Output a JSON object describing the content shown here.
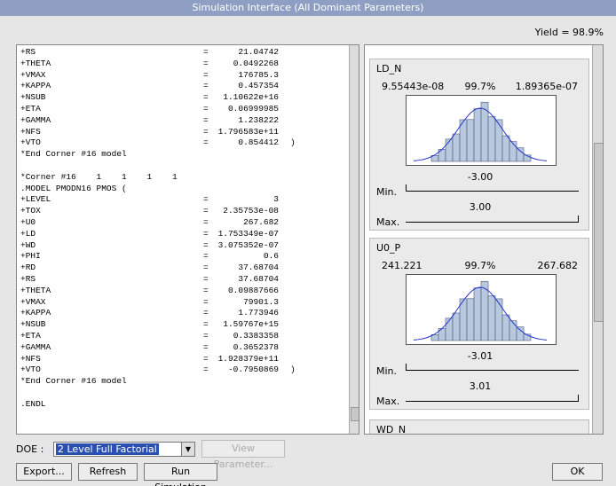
{
  "window": {
    "title": "Simulation Interface (All Dominant Parameters)",
    "yield": "Yield = 98.9%"
  },
  "model_text": [
    [
      "+RS",
      "=",
      "21.04742"
    ],
    [
      "+THETA",
      "=",
      "0.0492268"
    ],
    [
      "+VMAX",
      "=",
      "176785.3"
    ],
    [
      "+KAPPA",
      "=",
      "0.457354"
    ],
    [
      "+NSUB",
      "=",
      "1.10622e+16"
    ],
    [
      "+ETA",
      "=",
      "0.06999985"
    ],
    [
      "+GAMMA",
      "=",
      "1.238222"
    ],
    [
      "+NFS",
      "=",
      "1.796583e+11"
    ],
    [
      "+VTO",
      "=",
      "0.854412",
      ")"
    ],
    [
      "*End Corner #16 model"
    ],
    null,
    [
      "*Corner #16    1    1    1    1"
    ],
    [
      ".MODEL PMODN16 PMOS ("
    ],
    [
      "+LEVEL",
      "=",
      "3"
    ],
    [
      "+TOX",
      "=",
      "2.35753e-08"
    ],
    [
      "+U0",
      "=",
      "267.682"
    ],
    [
      "+LD",
      "=",
      "1.753349e-07"
    ],
    [
      "+WD",
      "=",
      "3.075352e-07"
    ],
    [
      "+PHI",
      "=",
      "0.6"
    ],
    [
      "+RD",
      "=",
      "37.68704"
    ],
    [
      "+RS",
      "=",
      "37.68704"
    ],
    [
      "+THETA",
      "=",
      "0.09887666"
    ],
    [
      "+VMAX",
      "=",
      "79901.3"
    ],
    [
      "+KAPPA",
      "=",
      "1.773946"
    ],
    [
      "+NSUB",
      "=",
      "1.59767e+15"
    ],
    [
      "+ETA",
      "=",
      "0.3383358"
    ],
    [
      "+GAMMA",
      "=",
      "0.3652378"
    ],
    [
      "+NFS",
      "=",
      "1.928379e+11"
    ],
    [
      "+VTO",
      "=",
      "-0.7950869",
      ")"
    ],
    [
      "*End Corner #16 model"
    ],
    null,
    [
      ".ENDL"
    ]
  ],
  "parameters": [
    {
      "name": "LD_N",
      "low": "9.55443e-08",
      "percent": "99.7%",
      "high": "1.89365e-07",
      "min_value": "-3.00",
      "min_label": "Min.",
      "max_value": "3.00",
      "max_label": "Max."
    },
    {
      "name": "U0_P",
      "low": "241.221",
      "percent": "99.7%",
      "high": "267.682",
      "min_value": "-3.01",
      "min_label": "Min.",
      "max_value": "3.01",
      "max_label": "Max."
    },
    {
      "name": "WD_N"
    }
  ],
  "controls": {
    "doe_label": "DOE :",
    "doe_value": "2 Level Full Factorial",
    "view_parameter": "View Parameter...",
    "export": "Export...",
    "refresh": "Refresh",
    "run_simulation": "Run Simulation",
    "ok": "OK"
  }
}
